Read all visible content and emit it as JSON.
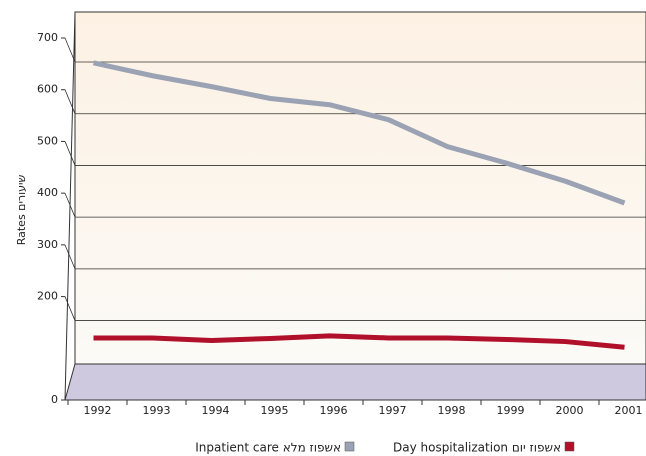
{
  "chart_data": {
    "type": "line",
    "y_label": "Rates שיעורים",
    "categories": [
      "1992",
      "1993",
      "1994",
      "1995",
      "1996",
      "1997",
      "1998",
      "1999",
      "2000",
      "2001"
    ],
    "series": [
      {
        "name": "Inpatient care אשפוז מלא",
        "color": "#9aa2b4",
        "values": [
          652,
          627,
          606,
          583,
          571,
          542,
          490,
          458,
          423,
          381
        ]
      },
      {
        "name": "Day hospitalization אשפוז יום",
        "color": "#b0102a",
        "values": [
          120,
          120,
          115,
          119,
          124,
          120,
          120,
          117,
          113,
          102
        ]
      }
    ],
    "ylim": [
      0,
      700
    ],
    "yticks": [
      0,
      200,
      300,
      400,
      500,
      600,
      700
    ],
    "grid": true
  }
}
